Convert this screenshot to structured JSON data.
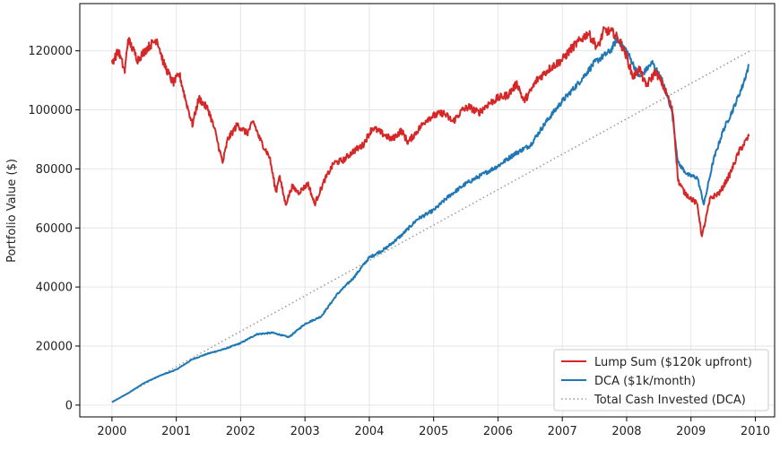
{
  "chart_data": {
    "type": "line",
    "title": "",
    "xlabel": "",
    "ylabel": "Portfolio Value ($)",
    "xlim": [
      1999.5,
      2010.3
    ],
    "ylim": [
      -4000,
      136000
    ],
    "x_ticks": [
      2000,
      2001,
      2002,
      2003,
      2004,
      2005,
      2006,
      2007,
      2008,
      2009,
      2010
    ],
    "x_tick_labels": [
      "2000",
      "2001",
      "2002",
      "2003",
      "2004",
      "2005",
      "2006",
      "2007",
      "2008",
      "2009",
      "2010"
    ],
    "y_ticks": [
      0,
      20000,
      40000,
      60000,
      80000,
      100000,
      120000
    ],
    "y_tick_labels": [
      "0",
      "20000",
      "40000",
      "60000",
      "80000",
      "100000",
      "120000"
    ],
    "grid": true,
    "legend_position": "bottom-right",
    "series": [
      {
        "name": "Lump Sum ($120k upfront)",
        "color": "#d62728",
        "style": "solid",
        "x": [
          2000.0,
          2000.1,
          2000.2,
          2000.25,
          2000.4,
          2000.55,
          2000.7,
          2000.8,
          2000.95,
          2001.05,
          2001.15,
          2001.25,
          2001.35,
          2001.5,
          2001.6,
          2001.72,
          2001.8,
          2001.95,
          2002.1,
          2002.2,
          2002.3,
          2002.45,
          2002.55,
          2002.6,
          2002.7,
          2002.8,
          2002.9,
          2003.05,
          2003.15,
          2003.3,
          2003.45,
          2003.6,
          2003.75,
          2003.9,
          2004.05,
          2004.2,
          2004.35,
          2004.5,
          2004.6,
          2004.75,
          2004.9,
          2005.0,
          2005.15,
          2005.3,
          2005.45,
          2005.55,
          2005.7,
          2005.85,
          2006.0,
          2006.15,
          2006.3,
          2006.4,
          2006.5,
          2006.6,
          2006.8,
          2007.0,
          2007.15,
          2007.3,
          2007.4,
          2007.55,
          2007.65,
          2007.8,
          2007.9,
          2008.0,
          2008.1,
          2008.2,
          2008.3,
          2008.45,
          2008.55,
          2008.65,
          2008.72,
          2008.8,
          2008.9,
          2009.0,
          2009.1,
          2009.17,
          2009.3,
          2009.45,
          2009.6,
          2009.75,
          2009.9
        ],
        "values": [
          116000,
          120000,
          113000,
          124000,
          117000,
          121000,
          124000,
          116000,
          109000,
          112000,
          103000,
          95000,
          104000,
          100000,
          93000,
          82000,
          90000,
          95000,
          92000,
          96000,
          90000,
          84000,
          72000,
          78000,
          68000,
          74000,
          72000,
          75000,
          68000,
          76000,
          82000,
          83000,
          86000,
          88000,
          94000,
          92000,
          90000,
          93000,
          89000,
          93000,
          97000,
          98000,
          99000,
          96000,
          100000,
          101000,
          99000,
          102000,
          104000,
          105000,
          109000,
          103000,
          106000,
          110000,
          114000,
          117000,
          121000,
          124000,
          126000,
          121000,
          127000,
          126000,
          123000,
          118000,
          111000,
          114000,
          108000,
          113000,
          109000,
          104000,
          99000,
          76000,
          72000,
          70000,
          68000,
          57000,
          70000,
          72000,
          78000,
          86000,
          91000
        ]
      },
      {
        "name": "DCA ($1k/month)",
        "color": "#1f77b4",
        "style": "solid",
        "x": [
          2000.0,
          2000.25,
          2000.5,
          2000.75,
          2001.0,
          2001.25,
          2001.5,
          2001.75,
          2002.0,
          2002.25,
          2002.5,
          2002.75,
          2003.0,
          2003.25,
          2003.5,
          2003.75,
          2004.0,
          2004.25,
          2004.5,
          2004.75,
          2005.0,
          2005.25,
          2005.5,
          2005.75,
          2006.0,
          2006.25,
          2006.5,
          2006.75,
          2007.0,
          2007.25,
          2007.5,
          2007.75,
          2007.85,
          2008.0,
          2008.2,
          2008.4,
          2008.55,
          2008.7,
          2008.8,
          2008.95,
          2009.1,
          2009.2,
          2009.35,
          2009.5,
          2009.65,
          2009.8,
          2009.9
        ],
        "values": [
          1000,
          4000,
          7500,
          10000,
          12000,
          15500,
          17500,
          19000,
          21000,
          24000,
          24500,
          23000,
          27500,
          30000,
          37500,
          43000,
          50000,
          53000,
          57500,
          63000,
          66000,
          71000,
          75000,
          78000,
          81000,
          85000,
          88000,
          96000,
          103000,
          109000,
          116000,
          120000,
          124000,
          120000,
          111000,
          116000,
          110000,
          100000,
          82000,
          78000,
          77000,
          68000,
          83000,
          93000,
          100000,
          108000,
          115000
        ]
      },
      {
        "name": "Total Cash Invested (DCA)",
        "color": "#999999",
        "style": "dotted",
        "x": [
          2000.0,
          2009.92
        ],
        "values": [
          1000,
          120000
        ]
      }
    ]
  }
}
